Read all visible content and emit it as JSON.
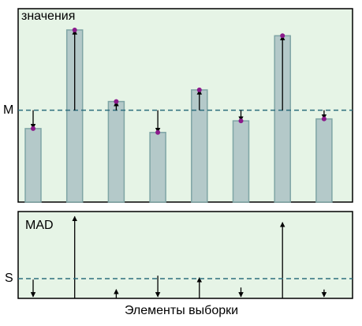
{
  "chart_data": [
    {
      "type": "bar",
      "ylabel": "значения",
      "values": [
        38,
        89,
        52,
        36,
        58,
        42,
        86,
        43
      ],
      "ylim": [
        0,
        100
      ],
      "reference_value": 47.5,
      "reference_label": "M",
      "color": "#b4c9c9",
      "point_color": "#8b1a8b"
    },
    {
      "type": "deviation",
      "title": "MAD",
      "xlabel": "Элементы выборки",
      "values": [
        9.5,
        41.5,
        4.5,
        11.5,
        10.5,
        5.5,
        38.5,
        4.5
      ],
      "ylim": [
        0,
        44
      ],
      "reference_value": 10,
      "reference_label": "S"
    }
  ]
}
